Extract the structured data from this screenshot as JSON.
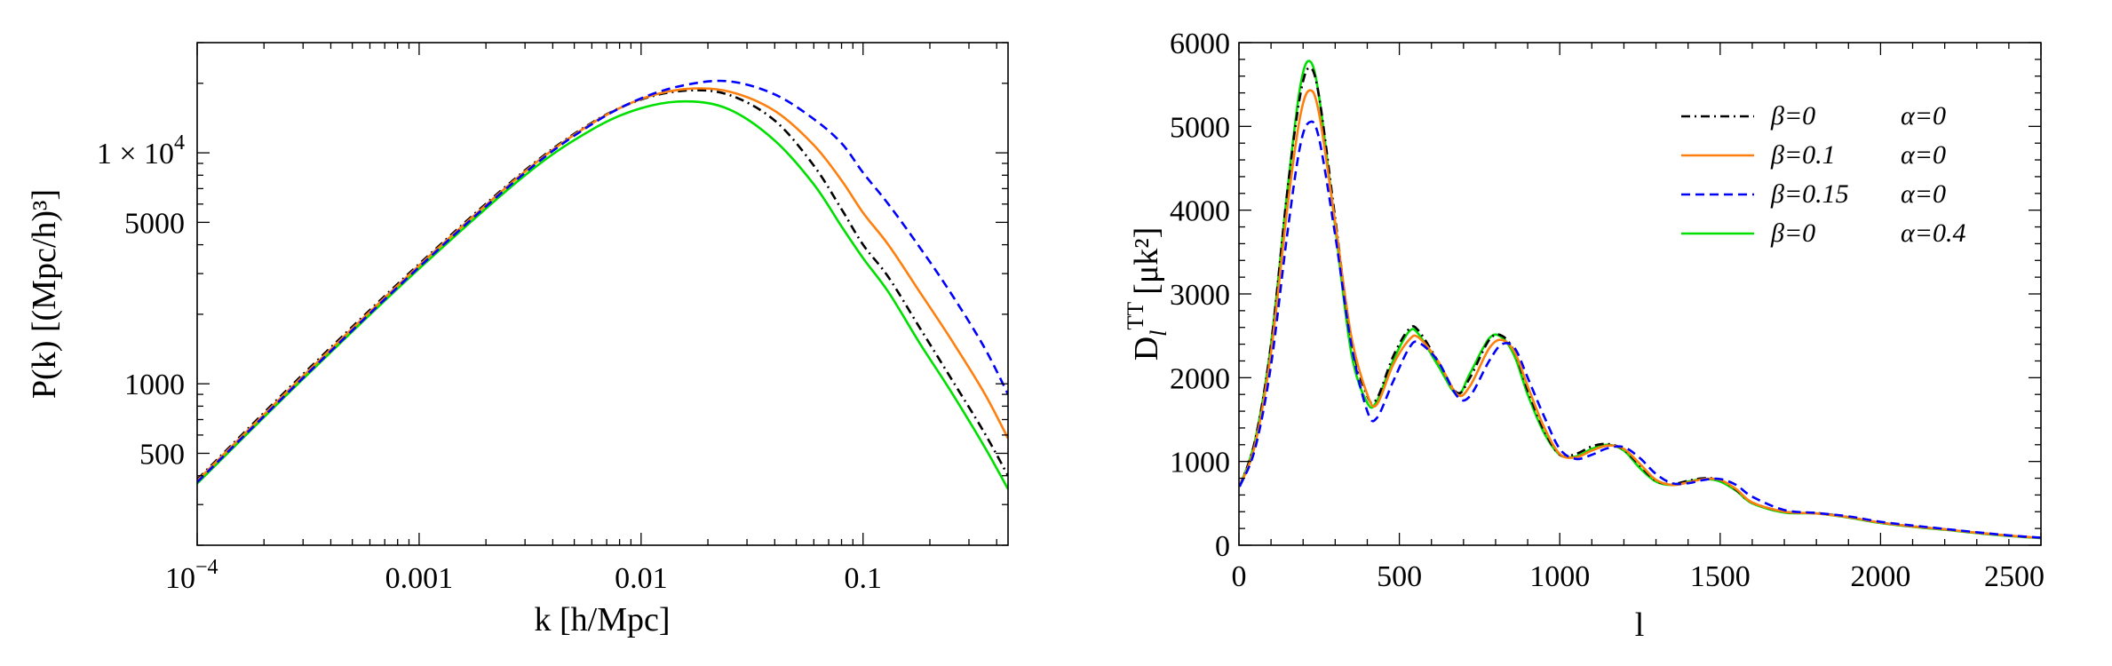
{
  "chart_data": [
    {
      "type": "line",
      "title": "",
      "xlabel": "k [h/Mpc]",
      "ylabel": "P(k) [(Mpc/h)³]",
      "xscale": "log",
      "yscale": "log",
      "xlim": [
        0.0001,
        0.45
      ],
      "ylim": [
        200,
        30000
      ],
      "grid": false,
      "legend": "none",
      "x_ticks": [
        {
          "value": 0.0001,
          "label": "10",
          "sup": "−4"
        },
        {
          "value": 0.001,
          "label": "0.001",
          "sup": ""
        },
        {
          "value": 0.01,
          "label": "0.01",
          "sup": ""
        },
        {
          "value": 0.1,
          "label": "0.1",
          "sup": ""
        }
      ],
      "y_ticks": [
        {
          "value": 500,
          "label": "500",
          "sup": ""
        },
        {
          "value": 1000,
          "label": "1000",
          "sup": ""
        },
        {
          "value": 5000,
          "label": "5000",
          "sup": ""
        },
        {
          "value": 10000,
          "label": "1 × 10",
          "sup": "4"
        }
      ],
      "series": [
        {
          "color": "#00e000",
          "dash": "solid",
          "x": [
            0.0001,
            0.0003,
            0.001,
            0.003,
            0.006,
            0.01,
            0.016,
            0.025,
            0.04,
            0.06,
            0.08,
            0.1,
            0.13,
            0.18,
            0.25,
            0.35,
            0.45
          ],
          "y": [
            370,
            1050,
            3150,
            8000,
            12600,
            15600,
            16700,
            15400,
            11300,
            7300,
            4800,
            3500,
            2500,
            1500,
            920,
            540,
            350
          ]
        },
        {
          "color": "#000000",
          "dash": "dashdot",
          "x": [
            0.0001,
            0.0003,
            0.001,
            0.003,
            0.006,
            0.01,
            0.016,
            0.025,
            0.04,
            0.06,
            0.08,
            0.1,
            0.13,
            0.18,
            0.25,
            0.35,
            0.45
          ],
          "y": [
            385,
            1100,
            3300,
            8400,
            13500,
            17000,
            18600,
            17800,
            13800,
            8800,
            5700,
            4000,
            2900,
            1750,
            1050,
            620,
            400
          ]
        },
        {
          "color": "#ff7f0e",
          "dash": "solid",
          "x": [
            0.0001,
            0.0003,
            0.001,
            0.003,
            0.006,
            0.01,
            0.016,
            0.025,
            0.04,
            0.06,
            0.08,
            0.1,
            0.13,
            0.18,
            0.25,
            0.35,
            0.45
          ],
          "y": [
            380,
            1080,
            3250,
            8300,
            13400,
            17100,
            18900,
            18400,
            15200,
            10800,
            7600,
            5500,
            4000,
            2500,
            1550,
            920,
            580
          ]
        },
        {
          "color": "#0000ff",
          "dash": "dashed",
          "x": [
            0.0001,
            0.0003,
            0.001,
            0.003,
            0.006,
            0.01,
            0.016,
            0.025,
            0.04,
            0.06,
            0.08,
            0.1,
            0.13,
            0.18,
            0.25,
            0.35,
            0.45
          ],
          "y": [
            375,
            1060,
            3200,
            8200,
            13300,
            17200,
            19700,
            20400,
            17900,
            14000,
            11000,
            8200,
            6000,
            3900,
            2450,
            1450,
            900
          ]
        }
      ]
    },
    {
      "type": "line",
      "title": "",
      "xlabel": "l",
      "ylabel": "D",
      "ylabel_sub": "l",
      "ylabel_sup": "TT",
      "ylabel_unit": "[μk²]",
      "xlim": [
        0,
        2500
      ],
      "ylim": [
        0,
        6000
      ],
      "grid": false,
      "legend": "top-right",
      "x_ticks": [
        0,
        500,
        1000,
        1500,
        2000,
        2500
      ],
      "y_ticks": [
        0,
        1000,
        2000,
        3000,
        4000,
        5000,
        6000
      ],
      "legend_entries": [
        {
          "beta": "β=0",
          "alpha": "α=0"
        },
        {
          "beta": "β=0.1",
          "alpha": "α=0"
        },
        {
          "beta": "β=0.15",
          "alpha": "α=0"
        },
        {
          "beta": "β=0",
          "alpha": "α=0.4"
        }
      ],
      "series": [
        {
          "color": "#00e000",
          "dash": "solid",
          "x": [
            2,
            50,
            100,
            150,
            190,
            220,
            250,
            300,
            350,
            400,
            430,
            480,
            530,
            560,
            620,
            680,
            720,
            780,
            820,
            860,
            900,
            950,
            1000,
            1050,
            1100,
            1150,
            1200,
            1250,
            1300,
            1350,
            1400,
            1450,
            1500,
            1550,
            1600,
            1700,
            1800,
            1900,
            2000,
            2100,
            2200,
            2300,
            2400,
            2500
          ],
          "y": [
            700,
            1250,
            2400,
            4200,
            5450,
            5780,
            5350,
            3800,
            2300,
            1700,
            1720,
            2200,
            2550,
            2520,
            2150,
            1800,
            2050,
            2470,
            2480,
            2250,
            1800,
            1350,
            1080,
            1060,
            1150,
            1200,
            1130,
            920,
            760,
            720,
            760,
            790,
            760,
            650,
            500,
            390,
            380,
            330,
            265,
            220,
            185,
            145,
            110,
            85
          ]
        },
        {
          "color": "#000000",
          "dash": "dashdot",
          "x": [
            2,
            50,
            100,
            150,
            190,
            220,
            250,
            300,
            350,
            400,
            430,
            480,
            530,
            560,
            620,
            680,
            720,
            780,
            820,
            860,
            900,
            950,
            1000,
            1050,
            1100,
            1150,
            1200,
            1250,
            1300,
            1350,
            1400,
            1450,
            1500,
            1550,
            1600,
            1700,
            1800,
            1900,
            2000,
            2100,
            2200,
            2300,
            2400,
            2500
          ],
          "y": [
            700,
            1250,
            2400,
            4200,
            5350,
            5700,
            5350,
            3900,
            2450,
            1780,
            1750,
            2250,
            2580,
            2560,
            2200,
            1820,
            2000,
            2450,
            2500,
            2300,
            1850,
            1380,
            1080,
            1090,
            1180,
            1210,
            1140,
            950,
            770,
            730,
            770,
            800,
            780,
            660,
            510,
            400,
            385,
            335,
            270,
            225,
            190,
            150,
            115,
            88
          ]
        },
        {
          "color": "#ff7f0e",
          "dash": "solid",
          "x": [
            2,
            50,
            100,
            150,
            190,
            220,
            250,
            300,
            350,
            400,
            430,
            480,
            530,
            560,
            620,
            680,
            720,
            780,
            820,
            860,
            900,
            950,
            1000,
            1050,
            1100,
            1150,
            1200,
            1250,
            1300,
            1350,
            1400,
            1450,
            1500,
            1550,
            1600,
            1700,
            1800,
            1900,
            2000,
            2100,
            2200,
            2300,
            2400,
            2500
          ],
          "y": [
            700,
            1200,
            2300,
            4000,
            5100,
            5430,
            5150,
            3850,
            2500,
            1800,
            1680,
            2150,
            2450,
            2480,
            2200,
            1800,
            1900,
            2350,
            2450,
            2300,
            1900,
            1420,
            1090,
            1050,
            1130,
            1190,
            1150,
            970,
            780,
            720,
            750,
            790,
            780,
            670,
            510,
            400,
            380,
            335,
            270,
            225,
            190,
            150,
            115,
            88
          ]
        },
        {
          "color": "#0000ff",
          "dash": "dashed",
          "x": [
            2,
            50,
            100,
            150,
            190,
            220,
            250,
            300,
            350,
            400,
            430,
            480,
            530,
            560,
            620,
            680,
            720,
            780,
            820,
            860,
            900,
            950,
            1000,
            1050,
            1100,
            1150,
            1200,
            1250,
            1300,
            1350,
            1400,
            1450,
            1500,
            1550,
            1600,
            1700,
            1800,
            1900,
            2000,
            2100,
            2200,
            2300,
            2400,
            2500
          ],
          "y": [
            700,
            1150,
            2150,
            3700,
            4750,
            5050,
            4850,
            3700,
            2400,
            1600,
            1520,
            1950,
            2350,
            2420,
            2200,
            1780,
            1780,
            2200,
            2400,
            2350,
            2000,
            1550,
            1150,
            1030,
            1080,
            1160,
            1170,
            1040,
            850,
            740,
            740,
            780,
            790,
            720,
            580,
            420,
            385,
            345,
            280,
            235,
            195,
            155,
            118,
            90
          ]
        }
      ]
    }
  ]
}
